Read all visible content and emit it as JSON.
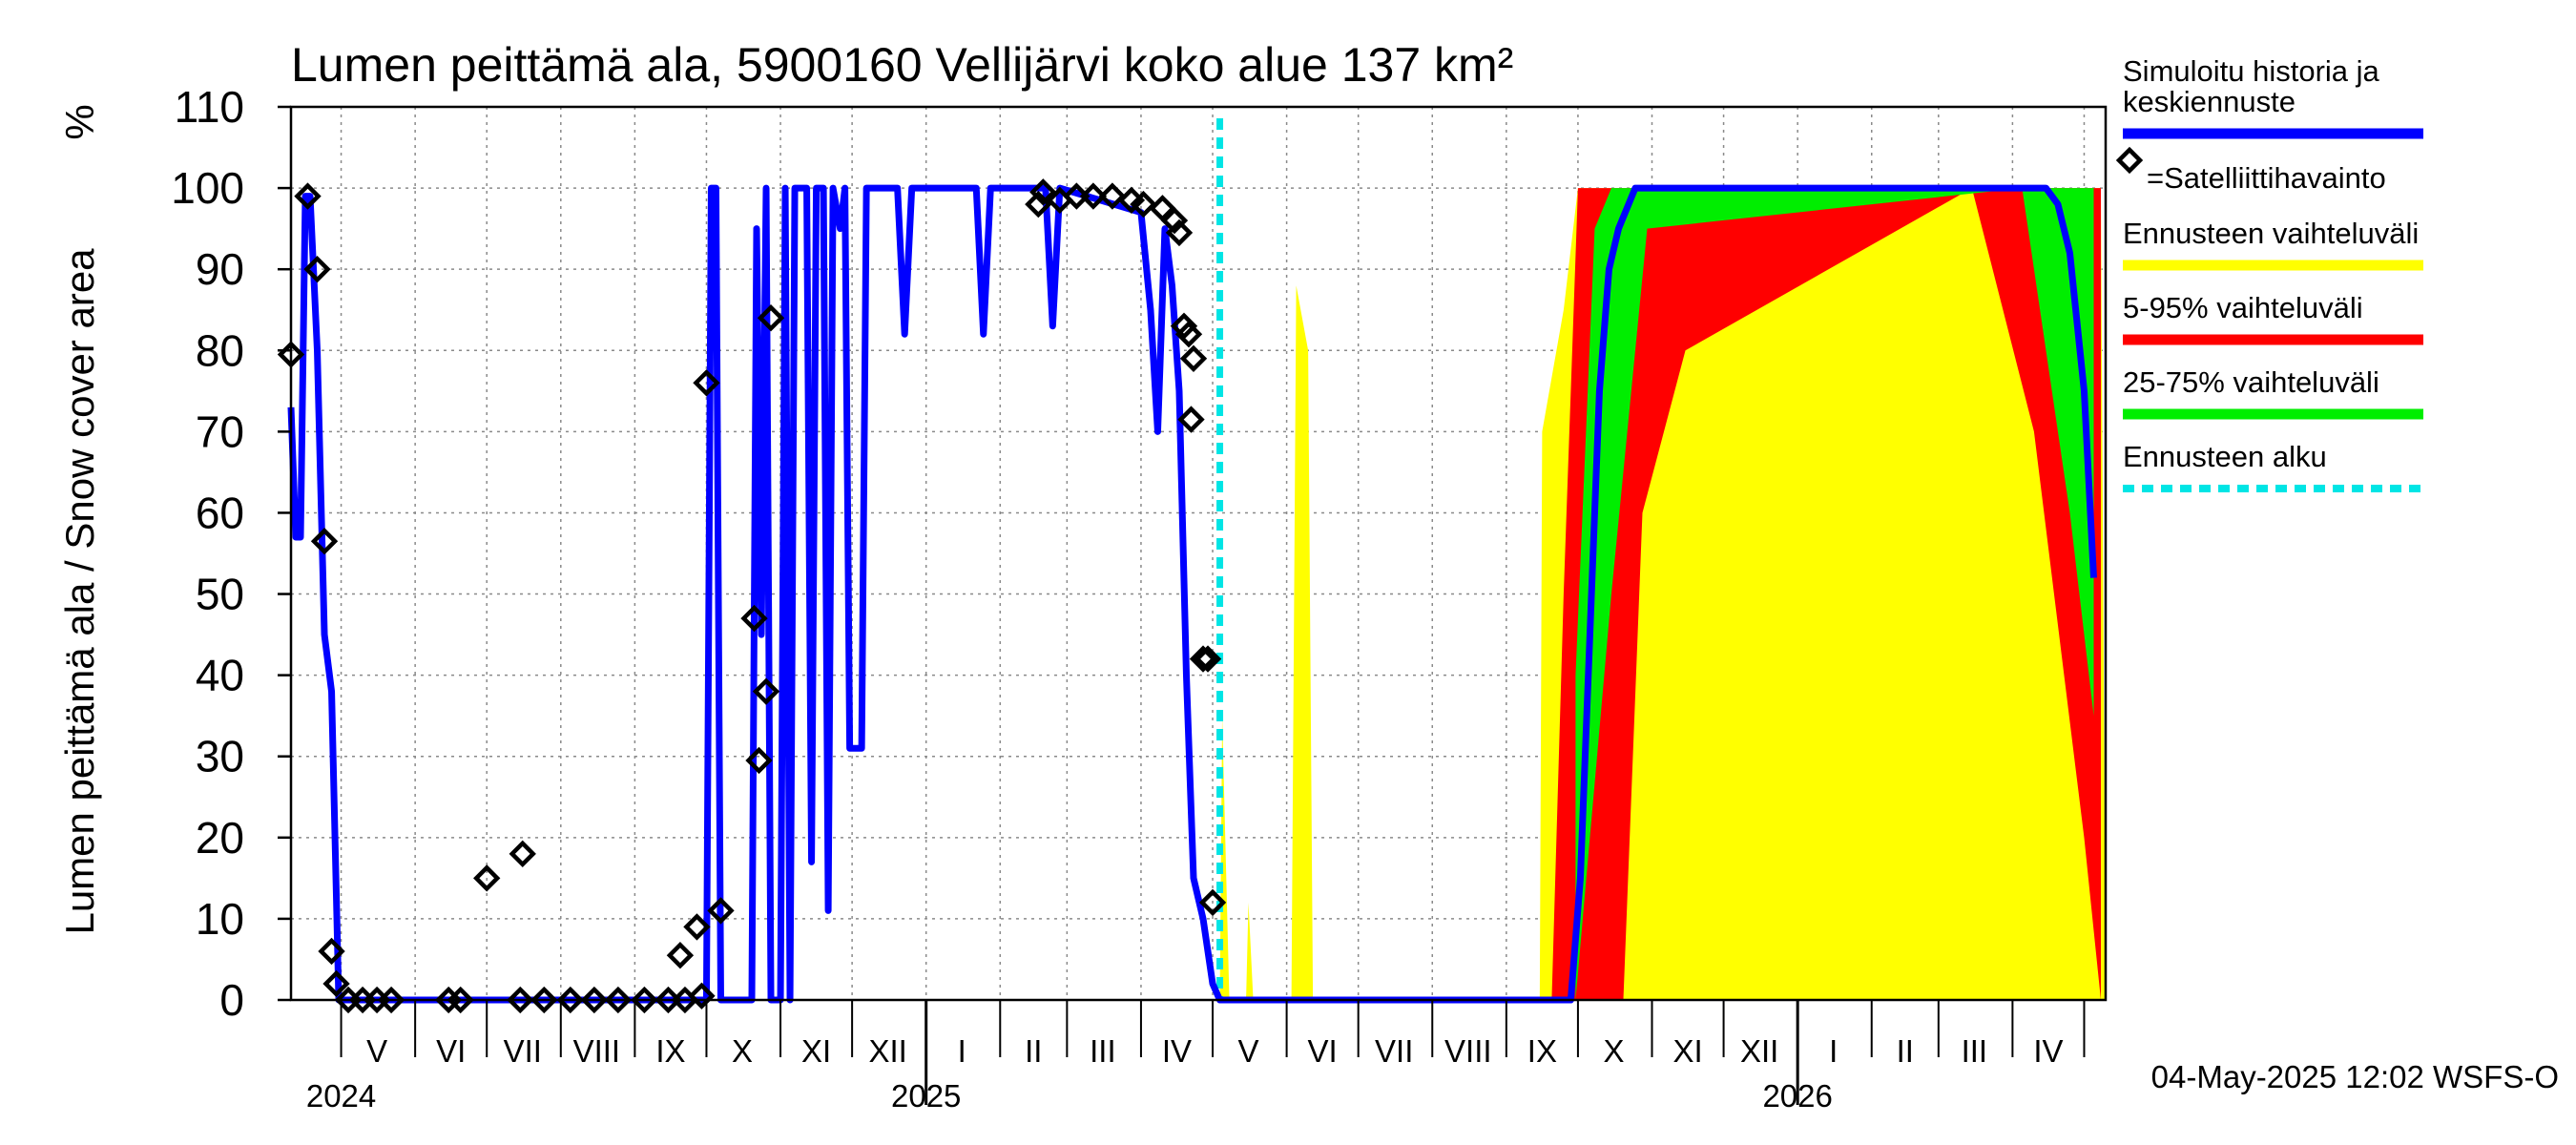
{
  "chart_data": {
    "type": "area",
    "title": "Lumen peittämä ala, 5900160 Vellijärvi koko alue 137 km²",
    "ylabel": "Lumen peittämä ala / Snow cover area",
    "yunit": "%",
    "ylim": [
      0,
      110
    ],
    "yticks": [
      0,
      10,
      20,
      30,
      40,
      50,
      60,
      70,
      80,
      90,
      100,
      110
    ],
    "xlim": [
      "2024-04-10",
      "2026-05-10"
    ],
    "grid": true,
    "legend_placement": "right",
    "footer": "04-May-2025 12:02 WSFS-O",
    "forecast_start": "2025-05-04",
    "month_labels": [
      {
        "label": "V",
        "date": "2024-05-16"
      },
      {
        "label": "VI",
        "date": "2024-06-16"
      },
      {
        "label": "VII",
        "date": "2024-07-16"
      },
      {
        "label": "VIII",
        "date": "2024-08-16"
      },
      {
        "label": "IX",
        "date": "2024-09-16"
      },
      {
        "label": "X",
        "date": "2024-10-16"
      },
      {
        "label": "XI",
        "date": "2024-11-16"
      },
      {
        "label": "XII",
        "date": "2024-12-16"
      },
      {
        "label": "I",
        "date": "2025-01-16"
      },
      {
        "label": "II",
        "date": "2025-02-15"
      },
      {
        "label": "III",
        "date": "2025-03-16"
      },
      {
        "label": "IV",
        "date": "2025-04-16"
      },
      {
        "label": "V",
        "date": "2025-05-16"
      },
      {
        "label": "VI",
        "date": "2025-06-16"
      },
      {
        "label": "VII",
        "date": "2025-07-16"
      },
      {
        "label": "VIII",
        "date": "2025-08-16"
      },
      {
        "label": "IX",
        "date": "2025-09-16"
      },
      {
        "label": "X",
        "date": "2025-10-16"
      },
      {
        "label": "XI",
        "date": "2025-11-16"
      },
      {
        "label": "XII",
        "date": "2025-12-16"
      },
      {
        "label": "I",
        "date": "2026-01-16"
      },
      {
        "label": "II",
        "date": "2026-02-15"
      },
      {
        "label": "III",
        "date": "2026-03-16"
      },
      {
        "label": "IV",
        "date": "2026-04-16"
      }
    ],
    "year_labels": [
      {
        "label": "2024",
        "date": "2024-05-01"
      },
      {
        "label": "2025",
        "date": "2025-01-01"
      },
      {
        "label": "2026",
        "date": "2026-01-01"
      }
    ],
    "legend": [
      {
        "label": "Simuloitu historia ja keskiennuste",
        "lines": [
          "Simuloitu historia ja",
          "keskiennuste"
        ],
        "color": "#0000ff",
        "style": "solid"
      },
      {
        "label": "=Satelliittihavainto",
        "lines": [
          "=Satelliittihavainto"
        ],
        "color": "#000000",
        "style": "diamond"
      },
      {
        "label": "Ennusteen vaihteluväli",
        "lines": [
          "Ennusteen vaihteluväli"
        ],
        "color": "#ffff00",
        "style": "solid"
      },
      {
        "label": "5-95% vaihteluväli",
        "lines": [
          "5-95% vaihteluväli"
        ],
        "color": "#ff0000",
        "style": "solid"
      },
      {
        "label": "25-75% vaihteluväli",
        "lines": [
          "25-75% vaihteluväli"
        ],
        "color": "#00ee00",
        "style": "solid"
      },
      {
        "label": "Ennusteen alku",
        "lines": [
          "Ennusteen alku"
        ],
        "color": "#00e5e5",
        "style": "dashed"
      }
    ],
    "series": [
      {
        "name": "Simuloitu historia ja keskiennuste",
        "color": "#0000ff",
        "points": [
          [
            "2024-04-10",
            73
          ],
          [
            "2024-04-12",
            57
          ],
          [
            "2024-04-14",
            57
          ],
          [
            "2024-04-16",
            99
          ],
          [
            "2024-04-18",
            99
          ],
          [
            "2024-04-21",
            80
          ],
          [
            "2024-04-24",
            45
          ],
          [
            "2024-04-27",
            38
          ],
          [
            "2024-04-30",
            0
          ],
          [
            "2024-10-01",
            0
          ],
          [
            "2024-10-03",
            100
          ],
          [
            "2024-10-05",
            100
          ],
          [
            "2024-10-07",
            0
          ],
          [
            "2024-10-20",
            0
          ],
          [
            "2024-10-22",
            95
          ],
          [
            "2024-10-24",
            45
          ],
          [
            "2024-10-26",
            100
          ],
          [
            "2024-10-28",
            0
          ],
          [
            "2024-11-01",
            0
          ],
          [
            "2024-11-03",
            100
          ],
          [
            "2024-11-05",
            0
          ],
          [
            "2024-11-07",
            100
          ],
          [
            "2024-11-09",
            100
          ],
          [
            "2024-11-12",
            100
          ],
          [
            "2024-11-14",
            17
          ],
          [
            "2024-11-16",
            100
          ],
          [
            "2024-11-19",
            100
          ],
          [
            "2024-11-21",
            11
          ],
          [
            "2024-11-23",
            100
          ],
          [
            "2024-11-26",
            95
          ],
          [
            "2024-11-28",
            100
          ],
          [
            "2024-11-30",
            31
          ],
          [
            "2024-12-05",
            31
          ],
          [
            "2024-12-07",
            100
          ],
          [
            "2024-12-20",
            100
          ],
          [
            "2024-12-23",
            82
          ],
          [
            "2024-12-26",
            100
          ],
          [
            "2025-01-22",
            100
          ],
          [
            "2025-01-25",
            82
          ],
          [
            "2025-01-28",
            100
          ],
          [
            "2025-02-20",
            100
          ],
          [
            "2025-02-23",
            83
          ],
          [
            "2025-02-26",
            100
          ],
          [
            "2025-04-01",
            97
          ],
          [
            "2025-04-05",
            85
          ],
          [
            "2025-04-08",
            70
          ],
          [
            "2025-04-11",
            95
          ],
          [
            "2025-04-14",
            88
          ],
          [
            "2025-04-17",
            75
          ],
          [
            "2025-04-20",
            40
          ],
          [
            "2025-04-23",
            15
          ],
          [
            "2025-04-27",
            10
          ],
          [
            "2025-05-01",
            2
          ],
          [
            "2025-05-04",
            0
          ],
          [
            "2025-09-28",
            0
          ],
          [
            "2025-10-02",
            15
          ],
          [
            "2025-10-06",
            45
          ],
          [
            "2025-10-10",
            75
          ],
          [
            "2025-10-14",
            90
          ],
          [
            "2025-10-18",
            95
          ],
          [
            "2025-10-25",
            100
          ],
          [
            "2026-04-15",
            100
          ],
          [
            "2026-04-20",
            98
          ],
          [
            "2026-04-25",
            92
          ],
          [
            "2026-05-01",
            75
          ],
          [
            "2026-05-05",
            52
          ]
        ]
      },
      {
        "name": "=Satelliittihavainto",
        "type": "scatter",
        "points": [
          [
            "2024-04-10",
            79.5
          ],
          [
            "2024-04-17",
            99
          ],
          [
            "2024-04-21",
            90
          ],
          [
            "2024-04-24",
            56.5
          ],
          [
            "2024-04-27",
            6
          ],
          [
            "2024-04-29",
            2
          ],
          [
            "2024-05-04",
            0
          ],
          [
            "2024-05-10",
            0
          ],
          [
            "2024-05-16",
            0
          ],
          [
            "2024-05-22",
            0
          ],
          [
            "2024-06-15",
            0
          ],
          [
            "2024-06-20",
            0
          ],
          [
            "2024-07-01",
            15
          ],
          [
            "2024-07-15",
            0
          ],
          [
            "2024-07-16",
            18
          ],
          [
            "2024-07-25",
            0
          ],
          [
            "2024-08-05",
            0
          ],
          [
            "2024-08-15",
            0
          ],
          [
            "2024-08-25",
            0
          ],
          [
            "2024-09-05",
            0
          ],
          [
            "2024-09-15",
            0
          ],
          [
            "2024-09-22",
            0
          ],
          [
            "2024-09-20",
            5.5
          ],
          [
            "2024-09-27",
            9
          ],
          [
            "2024-09-29",
            0.5
          ],
          [
            "2024-10-01",
            76
          ],
          [
            "2024-10-07",
            11
          ],
          [
            "2024-10-21",
            47
          ],
          [
            "2024-10-23",
            29.5
          ],
          [
            "2024-10-26",
            38
          ],
          [
            "2024-10-28",
            84
          ],
          [
            "2025-02-17",
            98
          ],
          [
            "2025-02-19",
            99.5
          ],
          [
            "2025-02-26",
            98.5
          ],
          [
            "2025-03-05",
            99
          ],
          [
            "2025-03-12",
            99
          ],
          [
            "2025-03-20",
            99
          ],
          [
            "2025-03-28",
            98.5
          ],
          [
            "2025-04-02",
            98
          ],
          [
            "2025-04-10",
            97.5
          ],
          [
            "2025-04-15",
            96
          ],
          [
            "2025-04-17",
            94.5
          ],
          [
            "2025-04-19",
            83
          ],
          [
            "2025-04-21",
            82
          ],
          [
            "2025-04-22",
            71.5
          ],
          [
            "2025-04-23",
            79
          ],
          [
            "2025-04-27",
            42
          ],
          [
            "2025-04-29",
            42
          ],
          [
            "2025-05-01",
            12
          ]
        ]
      },
      {
        "name": "Ennusteen vaihteluväli",
        "type": "band",
        "color": "#ffff00",
        "lower": [
          [
            "2025-09-15",
            0
          ],
          [
            "2025-10-25",
            0
          ],
          [
            "2026-03-01",
            0
          ],
          [
            "2026-05-10",
            0
          ]
        ],
        "upper": [
          [
            "2025-05-04",
            0
          ],
          [
            "2025-05-05",
            35
          ],
          [
            "2025-05-08",
            0
          ],
          [
            "2025-05-15",
            0
          ],
          [
            "2025-05-16",
            12
          ],
          [
            "2025-05-18",
            0
          ],
          [
            "2025-06-03",
            0
          ],
          [
            "2025-06-05",
            88
          ],
          [
            "2025-06-10",
            80
          ],
          [
            "2025-06-12",
            0
          ],
          [
            "2025-09-15",
            0
          ],
          [
            "2025-09-16",
            70
          ],
          [
            "2025-09-25",
            85
          ],
          [
            "2025-10-01",
            100
          ],
          [
            "2026-05-08",
            100
          ],
          [
            "2026-05-10",
            0
          ]
        ]
      },
      {
        "name": "5-95% vaihteluväli",
        "type": "band",
        "color": "#ff0000",
        "lower": [
          [
            "2025-10-20",
            0
          ],
          [
            "2025-10-28",
            60
          ],
          [
            "2025-11-15",
            80
          ],
          [
            "2026-03-15",
            100
          ],
          [
            "2026-04-10",
            70
          ],
          [
            "2026-05-01",
            20
          ],
          [
            "2026-05-08",
            0
          ]
        ],
        "upper": [
          [
            "2025-09-20",
            0
          ],
          [
            "2025-09-25",
            50
          ],
          [
            "2025-10-01",
            100
          ],
          [
            "2026-05-08",
            100
          ]
        ]
      },
      {
        "name": "25-75% vaihteluväli",
        "type": "band",
        "color": "#00ee00",
        "lower": [
          [
            "2025-09-30",
            0
          ],
          [
            "2025-10-15",
            50
          ],
          [
            "2025-10-30",
            95
          ],
          [
            "2026-04-05",
            100
          ],
          [
            "2026-04-25",
            60
          ],
          [
            "2026-05-05",
            35
          ]
        ],
        "upper": [
          [
            "2025-09-30",
            40
          ],
          [
            "2025-10-08",
            95
          ],
          [
            "2025-10-15",
            100
          ],
          [
            "2026-05-05",
            100
          ]
        ]
      }
    ]
  }
}
